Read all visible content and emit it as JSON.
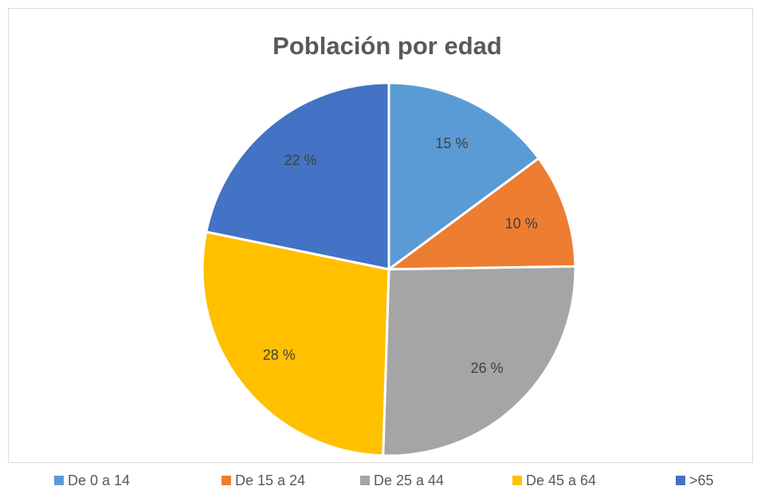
{
  "chart_data": {
    "type": "pie",
    "title": "Población por edad",
    "categories": [
      "De 0 a 14",
      "De 15 a 24",
      "De 25 a 44",
      "De 45 a 64",
      ">65"
    ],
    "values": [
      15,
      10,
      26,
      28,
      22
    ],
    "value_labels": [
      "15 %",
      "10 %",
      "26 %",
      "28 %",
      "22 %"
    ],
    "colors": [
      "#5b9bd5",
      "#ed7d31",
      "#a5a5a5",
      "#ffc000",
      "#4472c4"
    ],
    "legend": "bottom"
  }
}
